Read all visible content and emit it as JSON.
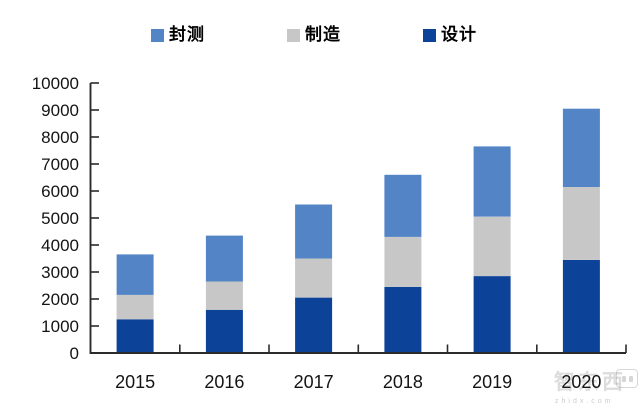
{
  "page": {
    "background": "#ffffff"
  },
  "legend": {
    "items": [
      {
        "label": "封测",
        "color": "#5284C6"
      },
      {
        "label": "制造",
        "color": "#C7C7C7"
      },
      {
        "label": "设计",
        "color": "#0D4299"
      }
    ]
  },
  "watermark": {
    "brand": "智东西",
    "domain": "zhidx.com"
  },
  "chart_data": {
    "type": "bar",
    "stacked": true,
    "title": "",
    "xlabel": "",
    "ylabel": "",
    "grid": false,
    "legend_position": "top",
    "categories": [
      "2015",
      "2016",
      "2017",
      "2018",
      "2019",
      "2020"
    ],
    "series": [
      {
        "name": "设计",
        "color": "#0D4299",
        "values": [
          1250,
          1600,
          2050,
          2450,
          2850,
          3450
        ]
      },
      {
        "name": "制造",
        "color": "#C7C7C7",
        "values": [
          900,
          1050,
          1450,
          1850,
          2200,
          2700
        ]
      },
      {
        "name": "封测",
        "color": "#5284C6",
        "values": [
          1500,
          1700,
          2000,
          2300,
          2600,
          2900
        ]
      }
    ],
    "stack_order_bottom_to_top": [
      "设计",
      "制造",
      "封测"
    ],
    "stack_totals": [
      3650,
      4350,
      5500,
      6600,
      7650,
      9050
    ],
    "ylim": [
      0,
      10000
    ],
    "yticks": [
      0,
      1000,
      2000,
      3000,
      4000,
      5000,
      6000,
      7000,
      8000,
      9000,
      10000
    ]
  }
}
